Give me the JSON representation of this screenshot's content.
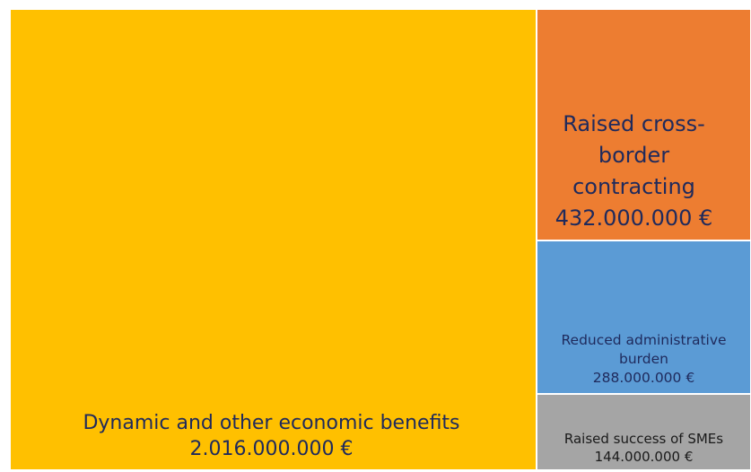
{
  "chart_data": {
    "type": "treemap",
    "currency": "€",
    "items": [
      {
        "id": "dynamic",
        "label_lines": [
          "Dynamic and other economic benefits"
        ],
        "value_text": "2.016.000.000 €",
        "value": 2016000000,
        "color": "#FFC000"
      },
      {
        "id": "cross",
        "label_lines": [
          "Raised cross-",
          "border",
          "contracting"
        ],
        "value_text": "432.000.000 €",
        "value": 432000000,
        "color": "#ED7D31"
      },
      {
        "id": "admin",
        "label_lines": [
          "Reduced administrative",
          "burden"
        ],
        "value_text": "288.000.000 €",
        "value": 288000000,
        "color": "#5B9BD5"
      },
      {
        "id": "sme",
        "label_lines": [
          "Raised success of SMEs"
        ],
        "value_text": "144.000.000 €",
        "value": 144000000,
        "color": "#A5A5A5"
      }
    ]
  }
}
